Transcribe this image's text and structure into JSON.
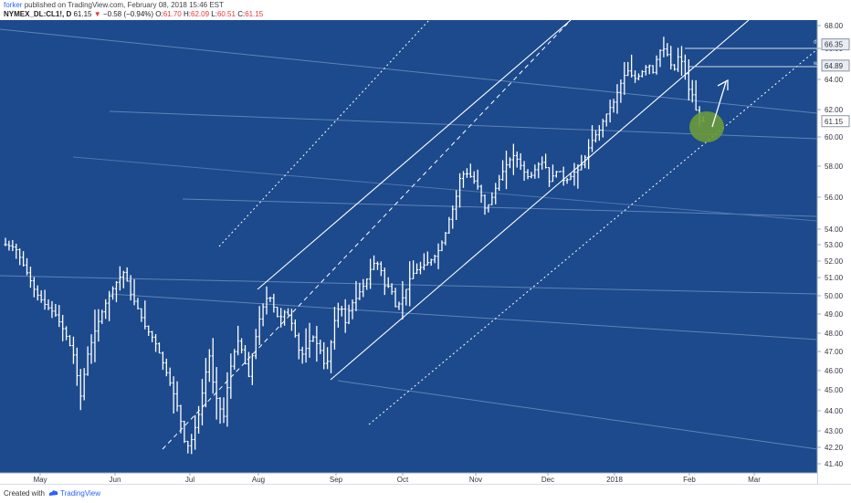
{
  "header": {
    "author": "forker",
    "published_text": "published on TradingView.com, February 08, 2018 15:46 EST",
    "symbol": "NYMEX_DL:CL1!, D",
    "last": "61.15",
    "change": "−0.58 (−0.94%)",
    "open_label": "O:",
    "open": "61.70",
    "high_label": "H:",
    "high": "62.09",
    "low_label": "L:",
    "low": "60.51",
    "close_label": "C:",
    "close": "61.15"
  },
  "footer": {
    "created_with": "Created with",
    "brand": "TradingView"
  },
  "colors": {
    "background": "#1c4a8c",
    "bars": "#ffffff",
    "highlight": "#6a9a3a",
    "change_negative": "#e53935"
  },
  "chart_data": {
    "type": "ohlc",
    "title": "",
    "xlabel": "",
    "ylabel": "",
    "x_ticks": [
      "May",
      "Jun",
      "Jul",
      "Aug",
      "Sep",
      "Oct",
      "Nov",
      "Dec",
      "2018",
      "Feb",
      "Mar"
    ],
    "y_ticks": [
      "68.00",
      "66.00",
      "64.00",
      "62.00",
      "60.00",
      "58.00",
      "56.00",
      "54.00",
      "53.00",
      "52.00",
      "51.00",
      "50.00",
      "49.00",
      "48.00",
      "47.00",
      "46.00",
      "45.00",
      "44.00",
      "43.00",
      "42.20",
      "41.40"
    ],
    "price_labels": [
      {
        "value": "66.35",
        "marker": "d"
      },
      {
        "value": "64.89",
        "marker": "w"
      },
      {
        "value": "61.15",
        "marker": ""
      }
    ],
    "series": [
      {
        "points": [
          [
            0,
            53.0
          ],
          [
            4,
            52.8
          ],
          [
            8,
            51.5
          ],
          [
            12,
            50.2
          ],
          [
            16,
            49.5
          ],
          [
            20,
            49.0
          ],
          [
            24,
            48.0
          ],
          [
            28,
            46.6
          ],
          [
            30,
            44.5
          ],
          [
            33,
            46.8
          ],
          [
            36,
            48.1
          ],
          [
            40,
            49.5
          ],
          [
            44,
            50.6
          ],
          [
            48,
            51.4
          ],
          [
            50,
            50.2
          ],
          [
            53,
            49.4
          ],
          [
            56,
            48.4
          ],
          [
            60,
            47.6
          ],
          [
            64,
            46.2
          ],
          [
            67,
            45.1
          ],
          [
            70,
            43.9
          ],
          [
            72,
            42.5
          ],
          [
            74,
            42.2
          ],
          [
            76,
            43.0
          ],
          [
            78,
            43.9
          ],
          [
            80,
            45.4
          ],
          [
            82,
            46.9
          ],
          [
            84,
            45.0
          ],
          [
            86,
            44.2
          ],
          [
            88,
            43.7
          ],
          [
            90,
            45.8
          ],
          [
            92,
            46.9
          ],
          [
            94,
            47.7
          ],
          [
            96,
            46.6
          ],
          [
            98,
            45.7
          ],
          [
            100,
            47.2
          ],
          [
            102,
            48.6
          ],
          [
            104,
            49.5
          ],
          [
            106,
            50.1
          ],
          [
            108,
            49.4
          ],
          [
            110,
            48.7
          ],
          [
            113,
            49.2
          ],
          [
            116,
            48.3
          ],
          [
            118,
            47.1
          ],
          [
            120,
            46.8
          ],
          [
            122,
            47.5
          ],
          [
            124,
            47.8
          ],
          [
            127,
            47.0
          ],
          [
            129,
            46.0
          ],
          [
            131,
            47.4
          ],
          [
            133,
            49.0
          ],
          [
            135,
            49.5
          ],
          [
            137,
            48.5
          ],
          [
            139,
            49.5
          ],
          [
            141,
            49.8
          ],
          [
            143,
            50.3
          ],
          [
            145,
            50.7
          ],
          [
            147,
            51.5
          ],
          [
            149,
            52.0
          ],
          [
            151,
            51.6
          ],
          [
            153,
            50.4
          ],
          [
            155,
            50.6
          ],
          [
            157,
            49.4
          ],
          [
            159,
            49.6
          ],
          [
            161,
            50.2
          ],
          [
            163,
            51.0
          ],
          [
            165,
            51.4
          ],
          [
            167,
            51.6
          ],
          [
            169,
            51.8
          ],
          [
            171,
            52.0
          ],
          [
            173,
            52.3
          ],
          [
            175,
            52.8
          ],
          [
            177,
            53.6
          ],
          [
            179,
            54.8
          ],
          [
            181,
            55.6
          ],
          [
            183,
            57.2
          ],
          [
            185,
            57.6
          ],
          [
            187,
            57.4
          ],
          [
            189,
            57.0
          ],
          [
            191,
            56.5
          ],
          [
            193,
            55.3
          ],
          [
            195,
            55.6
          ],
          [
            197,
            56.4
          ],
          [
            199,
            57.2
          ],
          [
            201,
            57.9
          ],
          [
            203,
            58.4
          ],
          [
            205,
            58.8
          ],
          [
            207,
            58.2
          ],
          [
            209,
            57.6
          ],
          [
            211,
            57.2
          ],
          [
            213,
            57.7
          ],
          [
            215,
            58.2
          ],
          [
            217,
            58.3
          ],
          [
            219,
            57.0
          ],
          [
            221,
            57.5
          ],
          [
            223,
            57.8
          ],
          [
            225,
            57.0
          ],
          [
            227,
            57.2
          ],
          [
            229,
            57.6
          ],
          [
            231,
            57.8
          ],
          [
            233,
            58.4
          ],
          [
            235,
            59.3
          ],
          [
            237,
            60.0
          ],
          [
            239,
            60.4
          ],
          [
            241,
            61.3
          ],
          [
            243,
            62.0
          ],
          [
            245,
            62.5
          ],
          [
            247,
            63.4
          ],
          [
            249,
            64.2
          ],
          [
            251,
            64.6
          ],
          [
            253,
            64.0
          ],
          [
            255,
            64.2
          ],
          [
            257,
            64.6
          ],
          [
            259,
            65.0
          ],
          [
            261,
            64.4
          ],
          [
            263,
            65.8
          ],
          [
            265,
            66.0
          ],
          [
            267,
            65.5
          ],
          [
            269,
            64.4
          ],
          [
            271,
            65.5
          ],
          [
            273,
            65.0
          ],
          [
            275,
            63.4
          ],
          [
            277,
            62.9
          ],
          [
            279,
            61.2
          ],
          [
            281,
            61.15
          ]
        ],
        "x_span_days": 281
      }
    ],
    "annotations": [
      {
        "type": "andrews_pitchfork_upper_channel",
        "style": "solid/dashed/dotted white lines"
      },
      {
        "type": "arrow",
        "direction": "up",
        "label": ""
      },
      {
        "type": "ellipse",
        "color": "highlight"
      }
    ],
    "ylim": [
      41.4,
      68.0
    ],
    "scale": "log-like (price axis)",
    "grid": false,
    "legend": "none"
  }
}
